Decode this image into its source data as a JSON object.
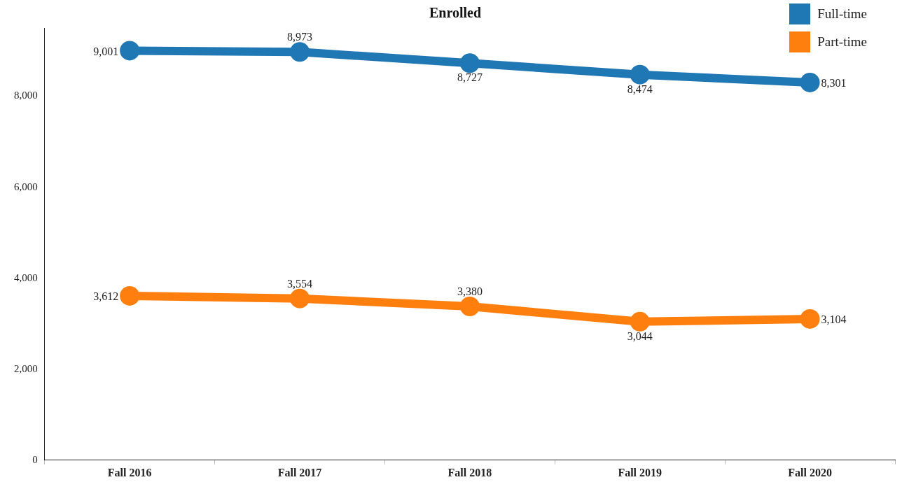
{
  "chart_data": {
    "type": "line",
    "title": "Enrolled",
    "categories": [
      "Fall 2016",
      "Fall 2017",
      "Fall 2018",
      "Fall 2019",
      "Fall 2020"
    ],
    "series": [
      {
        "name": "Full-time",
        "color": "#1f77b4",
        "values": [
          9001,
          8973,
          8727,
          8474,
          8301
        ],
        "value_labels": [
          "9,001",
          "8,973",
          "8,727",
          "8,474",
          "8,301"
        ]
      },
      {
        "name": "Part-time",
        "color": "#ff7f0e",
        "values": [
          3612,
          3554,
          3380,
          3044,
          3104
        ],
        "value_labels": [
          "3,612",
          "3,554",
          "3,380",
          "3,044",
          "3,104"
        ]
      }
    ],
    "ylim": [
      0,
      9500
    ],
    "yticks": [
      0,
      {
        "value": 2000,
        "label": "2,000"
      },
      {
        "value": 4000,
        "label": "4,000"
      },
      {
        "value": 6000,
        "label": "6,000"
      },
      {
        "value": 8000,
        "label": "8,000"
      }
    ],
    "grid": false,
    "legend": "top right",
    "marker": "circle",
    "line_style": "solid"
  }
}
